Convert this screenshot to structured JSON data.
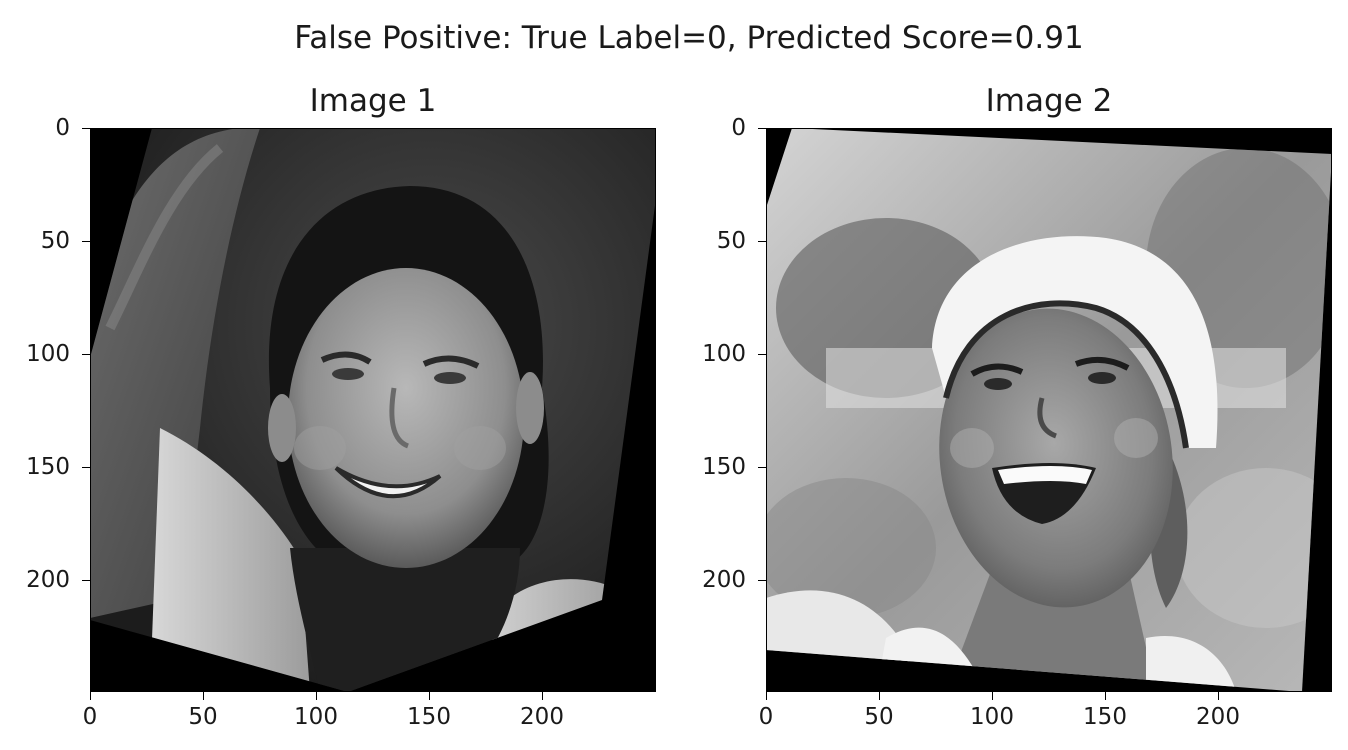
{
  "figure": {
    "suptitle": "False Positive: True Label=0, Predicted Score=0.91"
  },
  "panels": [
    {
      "title": "Image 1",
      "image_content": "grayscale rotated photo: smiling woman with dark hair, raised arm, jacket",
      "y_ticks": [
        "0",
        "50",
        "100",
        "150",
        "200"
      ],
      "x_ticks": [
        "0",
        "50",
        "100",
        "150",
        "200"
      ]
    },
    {
      "title": "Image 2",
      "image_content": "grayscale rotated photo: laughing woman wearing a white visor cap",
      "y_ticks": [
        "0",
        "50",
        "100",
        "150",
        "200"
      ],
      "x_ticks": [
        "0",
        "50",
        "100",
        "150",
        "200"
      ]
    }
  ],
  "axis": {
    "tick_values": [
      0,
      50,
      100,
      150,
      200
    ],
    "range": [
      0,
      250
    ]
  },
  "colors": {
    "background": "#ffffff",
    "text": "#1a1a1a",
    "image_padding": "#000000"
  }
}
